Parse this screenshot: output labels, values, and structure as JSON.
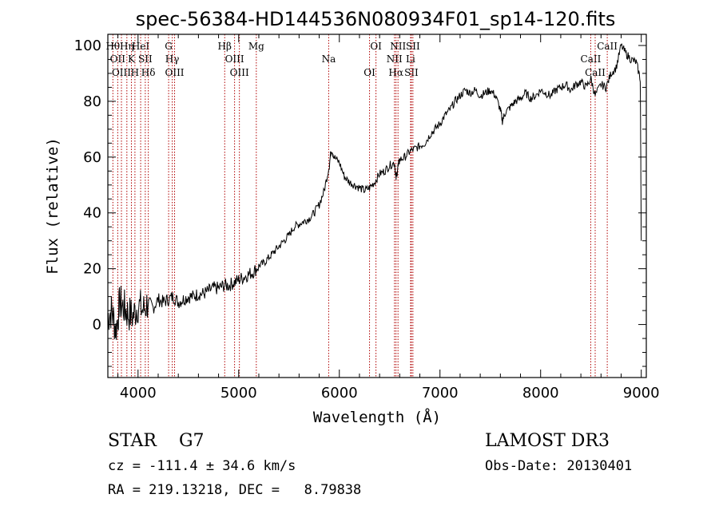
{
  "chart_data": {
    "type": "line",
    "title": "spec-56384-HD144536N080934F01_sp14-120.fits",
    "xlabel": "Wavelength (Å)",
    "ylabel": "Flux (relative)",
    "xlim": [
      3700,
      9050
    ],
    "ylim": [
      -19,
      104
    ],
    "xticks": [
      4000,
      5000,
      6000,
      7000,
      8000,
      9000
    ],
    "yticks": [
      0,
      20,
      40,
      60,
      80,
      100
    ],
    "grid": false,
    "colors": {
      "spectrum": "#000000",
      "lines": "#b00000"
    },
    "series": [
      {
        "x": [
          3700,
          3740,
          3780,
          3820,
          3860,
          3900,
          3950,
          4000,
          4050,
          4100,
          4150,
          4200,
          4250,
          4300,
          4350,
          4400,
          4450,
          4500,
          4550,
          4600,
          4650,
          4700,
          4750,
          4800,
          4850,
          4900,
          4950,
          5000,
          5050,
          5100,
          5150,
          5200,
          5250,
          5300,
          5350,
          5400,
          5450,
          5500,
          5550,
          5600,
          5650,
          5700,
          5750,
          5800,
          5850,
          5900,
          5920,
          5950,
          6000,
          6050,
          6100,
          6150,
          6200,
          6250,
          6300,
          6350,
          6400,
          6450,
          6500,
          6550,
          6562,
          6580,
          6600,
          6650,
          6700,
          6750,
          6800,
          6850,
          6900,
          6950,
          7000,
          7050,
          7100,
          7150,
          7200,
          7250,
          7300,
          7350,
          7400,
          7450,
          7500,
          7550,
          7600,
          7620,
          7650,
          7700,
          7750,
          7800,
          7850,
          7900,
          7950,
          8000,
          8050,
          8100,
          8150,
          8200,
          8250,
          8300,
          8350,
          8400,
          8450,
          8500,
          8542,
          8600,
          8650,
          8700,
          8750,
          8800,
          8850,
          8900,
          8950,
          8990,
          9000
        ],
        "values": [
          3,
          5,
          -2,
          8,
          6,
          4,
          3,
          7,
          5,
          8,
          6,
          9,
          8,
          9,
          10,
          8,
          9,
          10,
          10,
          11,
          11,
          12,
          13,
          13,
          14,
          14,
          15,
          16,
          17,
          18,
          19,
          21,
          22,
          24,
          26,
          28,
          30,
          32,
          35,
          36,
          37,
          38,
          40,
          43,
          48,
          57,
          63,
          60,
          58,
          53,
          51,
          50,
          49,
          48,
          49,
          51,
          54,
          55,
          57,
          58,
          52,
          56,
          59,
          60,
          62,
          63,
          64,
          65,
          68,
          70,
          72,
          75,
          77,
          80,
          82,
          84,
          83,
          84,
          82,
          83,
          84,
          82,
          77,
          73,
          76,
          78,
          80,
          81,
          83,
          81,
          82,
          84,
          83,
          82,
          84,
          85,
          86,
          84,
          86,
          87,
          85,
          88,
          82,
          86,
          85,
          90,
          92,
          100,
          97,
          95,
          94,
          88,
          30
        ]
      }
    ],
    "lines": [
      {
        "wl": 3750,
        "label": "Hθ"
      },
      {
        "wl": 3798,
        "label": "OII"
      },
      {
        "wl": 3835,
        "label": "OIII"
      },
      {
        "wl": 3889,
        "label": "Hη"
      },
      {
        "wl": 3934,
        "label": "K"
      },
      {
        "wl": 3969,
        "label": "H"
      },
      {
        "wl": 4026,
        "label": "HeI"
      },
      {
        "wl": 4072,
        "label": "SII"
      },
      {
        "wl": 4102,
        "label": "Hδ"
      },
      {
        "wl": 4304,
        "label": "G"
      },
      {
        "wl": 4340,
        "label": "Hγ"
      },
      {
        "wl": 4363,
        "label": "OIII"
      },
      {
        "wl": 4861,
        "label": "Hβ"
      },
      {
        "wl": 4959,
        "label": "OIII"
      },
      {
        "wl": 5007,
        "label": "OIII"
      },
      {
        "wl": 5175,
        "label": "Mg"
      },
      {
        "wl": 5894,
        "label": "Na"
      },
      {
        "wl": 6300,
        "label": "OI"
      },
      {
        "wl": 6364,
        "label": "OI"
      },
      {
        "wl": 6548,
        "label": "NII"
      },
      {
        "wl": 6563,
        "label": "Hα"
      },
      {
        "wl": 6583,
        "label": "NII"
      },
      {
        "wl": 6708,
        "label": "Li"
      },
      {
        "wl": 6716,
        "label": "SII"
      },
      {
        "wl": 6731,
        "label": "SII"
      },
      {
        "wl": 8498,
        "label": "CaII"
      },
      {
        "wl": 8542,
        "label": "CaII"
      },
      {
        "wl": 8662,
        "label": "CaII"
      }
    ]
  },
  "info": {
    "classification": "STAR    G7",
    "survey": "LAMOST DR3",
    "velocity": "cz = -111.4 ± 34.6 km/s",
    "obs_date": "Obs-Date: 20130401",
    "coords": "RA = 219.13218, DEC =   8.79838"
  }
}
